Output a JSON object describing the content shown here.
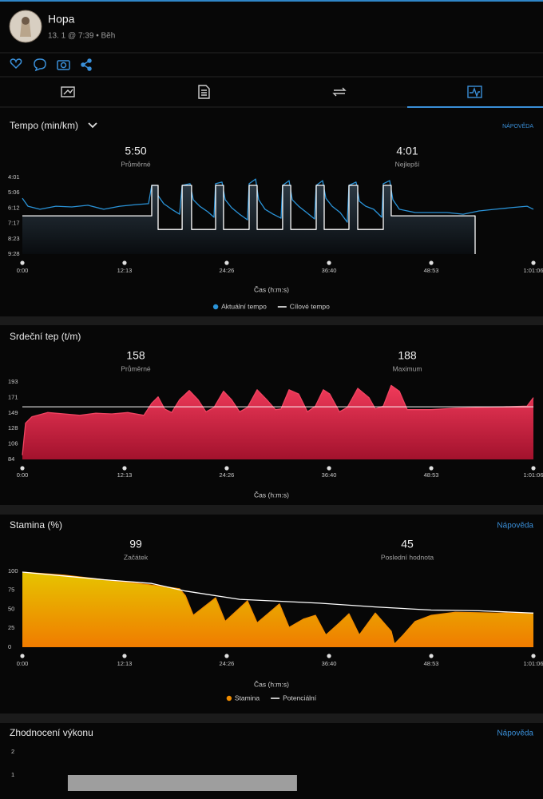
{
  "header": {
    "name": "Hopa",
    "subtitle": "13. 1 @ 7:39 • Běh"
  },
  "sections": [
    {
      "title": "Tempo (min/km)",
      "help": "NÁPOVĚDA",
      "stats": [
        {
          "value": "5:50",
          "label": "Průměrné"
        },
        {
          "value": "4:01",
          "label": "Nejlepší"
        }
      ],
      "chart": {
        "type": "line",
        "xlabel": "Čas (h:m:s)",
        "legend": true,
        "xlim": [
          0,
          3666
        ],
        "xticks": [
          {
            "value": 0,
            "label": "0:00"
          },
          {
            "value": 733,
            "label": "12:13"
          },
          {
            "value": 1466,
            "label": "24:26"
          },
          {
            "value": 2200,
            "label": "36:40"
          },
          {
            "value": 2933,
            "label": "48:53"
          },
          {
            "value": 3666,
            "label": "1:01:06"
          }
        ],
        "ylim": [
          568,
          241
        ],
        "yticks": [
          {
            "value": 241,
            "label": "4:01"
          },
          {
            "value": 306,
            "label": "5:06"
          },
          {
            "value": 372,
            "label": "6:12"
          },
          {
            "value": 437,
            "label": "7:17"
          },
          {
            "value": 503,
            "label": "8:23"
          },
          {
            "value": 568,
            "label": "9:28"
          }
        ],
        "series": [
          {
            "name": "Aktuální tempo",
            "color": "#2a93d8",
            "x": [
              0,
              40,
              126,
              241,
              355,
              470,
              584,
              699,
              813,
              905,
              928,
              962,
              974,
              1014,
              1071,
              1128,
              1146,
              1203,
              1226,
              1272,
              1329,
              1375,
              1386,
              1432,
              1455,
              1501,
              1558,
              1615,
              1627,
              1673,
              1695,
              1741,
              1799,
              1856,
              1867,
              1913,
              1936,
              1982,
              2039,
              2096,
              2108,
              2154,
              2177,
              2222,
              2280,
              2331,
              2343,
              2394,
              2417,
              2463,
              2520,
              2578,
              2589,
              2635,
              2658,
              2704,
              2818,
              2933,
              3047,
              3162,
              3276,
              3391,
              3505,
              3620,
              3666
            ],
            "values": [
              330,
              364,
              377,
              364,
              367,
              360,
              377,
              364,
              357,
              353,
              275,
              275,
              319,
              353,
              377,
              398,
              275,
              268,
              336,
              364,
              387,
              411,
              268,
              261,
              336,
              370,
              398,
              422,
              268,
              248,
              336,
              377,
              398,
              415,
              275,
              255,
              336,
              364,
              391,
              418,
              275,
              255,
              330,
              364,
              391,
              432,
              275,
              261,
              343,
              364,
              377,
              411,
              268,
              255,
              336,
              377,
              391,
              391,
              391,
              398,
              384,
              377,
              370,
              364,
              377
            ]
          },
          {
            "name": "Cílové tempo",
            "color": "#ffffff",
            "fill_colors": [
              "#2c3944",
              "#090c0f"
            ],
            "x": [
              0,
              928,
              928,
              974,
              974,
              1146,
              1146,
              1214,
              1214,
              1386,
              1386,
              1443,
              1443,
              1627,
              1627,
              1684,
              1684,
              1867,
              1867,
              1925,
              1925,
              2108,
              2108,
              2165,
              2165,
              2343,
              2343,
              2406,
              2406,
              2589,
              2589,
              2646,
              2646,
              3248,
              3248
            ],
            "values": [
              405,
              405,
              275,
              275,
              463,
              463,
              275,
              275,
              463,
              463,
              275,
              275,
              463,
              463,
              275,
              275,
              463,
              463,
              275,
              275,
              463,
              463,
              275,
              275,
              463,
              463,
              275,
              275,
              463,
              463,
              275,
              275,
              405,
              405,
              568
            ]
          }
        ]
      }
    },
    {
      "title": "Srdeční tep (t/m)",
      "stats": [
        {
          "value": 158,
          "label": "Průměrné"
        },
        {
          "value": 188,
          "label": "Maximum"
        }
      ],
      "chart": {
        "type": "area",
        "xlabel": "Čas (h:m:s)",
        "legend": false,
        "average_line": true,
        "xlim": [
          0,
          3666
        ],
        "xticks": [
          {
            "value": 0,
            "label": "0:00"
          },
          {
            "value": 733,
            "label": "12:13"
          },
          {
            "value": 1466,
            "label": "24:26"
          },
          {
            "value": 2200,
            "label": "36:40"
          },
          {
            "value": 2933,
            "label": "48:53"
          },
          {
            "value": 3666,
            "label": "1:01:06"
          }
        ],
        "ylim": [
          84,
          193
        ],
        "yticks": [
          84,
          106,
          128,
          149,
          171,
          193
        ],
        "series": [
          {
            "color": "#f04461",
            "fill_colors": [
              "#f03a5a",
              "#a3122d"
            ],
            "x": [
              0,
              23,
              69,
              183,
              298,
              412,
              527,
              642,
              756,
              871,
              928,
              974,
              1020,
              1071,
              1128,
              1197,
              1260,
              1317,
              1375,
              1443,
              1501,
              1558,
              1615,
              1684,
              1753,
              1816,
              1856,
              1913,
              1982,
              2045,
              2102,
              2159,
              2205,
              2274,
              2331,
              2406,
              2486,
              2532,
              2589,
              2646,
              2704,
              2761,
              2933,
              3105,
              3276,
              3448,
              3620,
              3666
            ],
            "values": [
              90,
              135,
              144,
              150,
              148,
              146,
              149,
              148,
              150,
              146,
              163,
              172,
              155,
              150,
              168,
              181,
              168,
              151,
              157,
              180,
              168,
              151,
              157,
              182,
              168,
              154,
              155,
              182,
              176,
              151,
              159,
              182,
              176,
              151,
              157,
              184,
              171,
              155,
              159,
              188,
              180,
              154,
              154,
              156,
              157,
              158,
              159,
              171
            ]
          }
        ]
      }
    },
    {
      "title": "Stamina (%)",
      "help": "Nápověda",
      "stats": [
        {
          "value": 99,
          "label": "Začátek"
        },
        {
          "value": 45,
          "label": "Poslední hodnota"
        }
      ],
      "chart": {
        "type": "area",
        "xlabel": "Čas (h:m:s)",
        "legend": true,
        "xlim": [
          0,
          3666
        ],
        "xticks": [
          {
            "value": 0,
            "label": "0:00"
          },
          {
            "value": 733,
            "label": "12:13"
          },
          {
            "value": 1466,
            "label": "24:26"
          },
          {
            "value": 2200,
            "label": "36:40"
          },
          {
            "value": 2933,
            "label": "48:53"
          },
          {
            "value": 3666,
            "label": "1:01:06"
          }
        ],
        "ylim": [
          0,
          100
        ],
        "yticks": [
          0,
          25,
          50,
          75,
          100
        ],
        "series": [
          {
            "name": "Stamina",
            "color": "#f08c00",
            "fill_colors": [
              "#e6c400",
              "#f07c00"
            ],
            "x": [
              0,
              298,
              584,
              928,
              1128,
              1169,
              1226,
              1386,
              1455,
              1615,
              1684,
              1844,
              1913,
              2016,
              2102,
              2177,
              2274,
              2343,
              2417,
              2532,
              2646,
              2669,
              2732,
              2818,
              2933,
              3105,
              3391,
              3666
            ],
            "values": [
              99,
              95,
              89,
              82,
              77,
              68,
              42,
              65,
              34,
              61,
              32,
              57,
              26,
              37,
              42,
              16,
              32,
              44,
              16,
              45,
              21,
              4,
              16,
              34,
              42,
              46,
              45,
              45
            ]
          },
          {
            "name": "Potenciální",
            "color": "#ffffff",
            "x": [
              0,
              584,
              928,
              1169,
              1558,
              2131,
              2532,
              2933,
              3276,
              3666
            ],
            "values": [
              99,
              89,
              84,
              74,
              63,
              58,
              53,
              49,
              48,
              45
            ]
          }
        ]
      }
    },
    {
      "title": "Zhodnocení výkonu",
      "help": "Nápověda",
      "chart": {
        "type": "bar",
        "xlim": [
          0,
          3666
        ],
        "ylim": [
          0,
          2
        ],
        "yticks": [
          1,
          2
        ],
        "series": [
          {
            "color": "#9e9e9e",
            "x": [
              326,
              1970
            ],
            "values": [
              1,
              1
            ]
          }
        ]
      }
    }
  ]
}
